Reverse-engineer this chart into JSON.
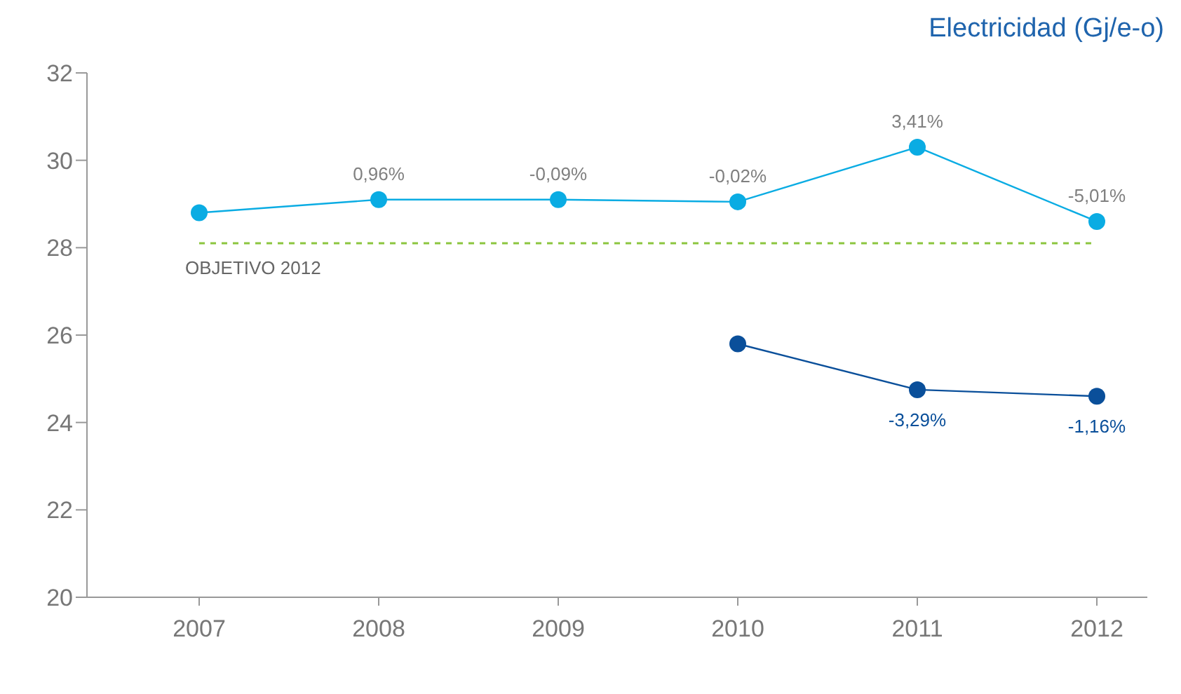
{
  "chart_data": {
    "type": "line",
    "title": "Electricidad (Gj/e-o)",
    "categories": [
      "2007",
      "2008",
      "2009",
      "2010",
      "2011",
      "2012"
    ],
    "series": [
      {
        "color": "#0aace3",
        "values": [
          28.8,
          29.1,
          29.1,
          29.05,
          30.3,
          28.6
        ]
      },
      {
        "color": "#0a4f9a",
        "values": [
          null,
          null,
          null,
          25.8,
          24.75,
          24.6
        ]
      }
    ],
    "annotations": [
      {
        "text": "0,96%",
        "x": "2008",
        "y": 29.1
      },
      {
        "text": "-0,09%",
        "x": "2009",
        "y": 29.1
      },
      {
        "text": "-0,02%",
        "x": "2010",
        "y": 29.05
      },
      {
        "text": "3,41%",
        "x": "2011",
        "y": 30.3
      },
      {
        "text": "-5,01%",
        "x": "2012",
        "y": 28.6
      },
      {
        "text": "-3,29%",
        "x": "2011",
        "y": 24.75
      },
      {
        "text": "-1,16%",
        "x": "2012",
        "y": 24.6
      }
    ],
    "ylim": [
      20,
      32
    ],
    "yticks": [
      20,
      22,
      24,
      26,
      28,
      30,
      32
    ],
    "grid": false,
    "marker": "circle",
    "line_style": "solid",
    "ref_lines": [
      {
        "axis": "y",
        "value": 28.1,
        "label": "OBJETIVO 2012",
        "color": "#8cc63f",
        "line_style": "dashed"
      }
    ]
  }
}
